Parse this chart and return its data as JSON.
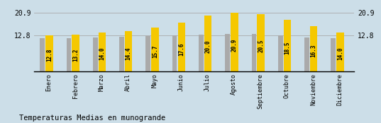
{
  "categories": [
    "Enero",
    "Febrero",
    "Marzo",
    "Abril",
    "Mayo",
    "Junio",
    "Julio",
    "Agosto",
    "Septiembre",
    "Octubre",
    "Noviembre",
    "Diciembre"
  ],
  "values": [
    12.8,
    13.2,
    14.0,
    14.4,
    15.7,
    17.6,
    20.0,
    20.9,
    20.5,
    18.5,
    16.3,
    14.0
  ],
  "gray_values": [
    11.8,
    11.9,
    12.2,
    12.4,
    12.6,
    13.0,
    13.2,
    13.5,
    13.3,
    12.8,
    12.2,
    12.0
  ],
  "bar_color_yellow": "#F5C800",
  "bar_color_gray": "#AAAAAA",
  "background_color": "#CCDEE8",
  "title": "Temperaturas Medias en munogrande",
  "ylim_max": 22.5,
  "yticks": [
    12.8,
    20.9
  ],
  "title_fontsize": 7.5,
  "value_fontsize": 5.5,
  "tick_fontsize": 6,
  "axis_fontsize": 7,
  "gray_bar_width": 0.18,
  "yellow_bar_width": 0.28
}
